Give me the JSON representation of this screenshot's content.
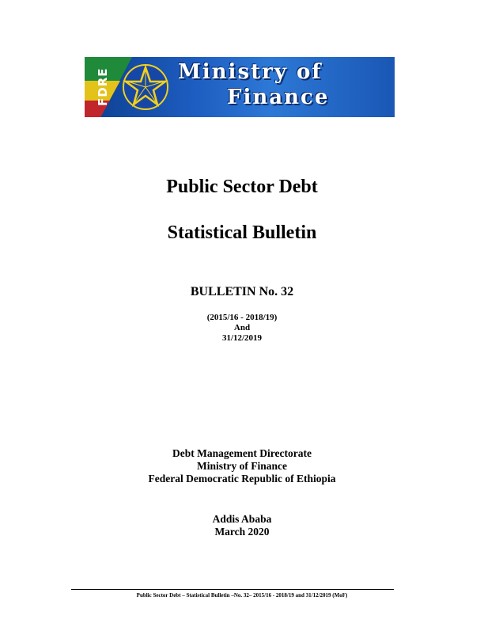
{
  "banner": {
    "side_text": "FDRE",
    "line1": "Ministry of",
    "line2": "Finance"
  },
  "title": {
    "line1": "Public Sector Debt",
    "line2": "Statistical Bulletin"
  },
  "bulletin": {
    "number": "BULLETIN No. 32",
    "period": "(2015/16 - 2018/19)",
    "and": "And",
    "date": "31/12/2019"
  },
  "organization": {
    "line1": "Debt Management Directorate",
    "line2": "Ministry of Finance",
    "line3": "Federal Democratic Republic of Ethiopia"
  },
  "place": {
    "city": "Addis Ababa",
    "date": "March 2020"
  },
  "footer": {
    "text": "Public Sector Debt – Statistical Bulletin –No. 32– 2015/16 - 2018/19 and 31/12/2019    (MoF)"
  },
  "colors": {
    "banner_blue": "#1d5cc0",
    "emblem_yellow": "#f2d11c"
  },
  "icons": [
    "ethiopian-emblem-star"
  ]
}
